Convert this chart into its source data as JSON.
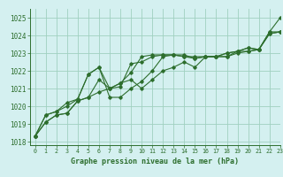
{
  "title": "Graphe pression niveau de la mer (hPa)",
  "background_color": "#d4f0f0",
  "grid_color": "#a0d0c0",
  "line_color": "#2d6e2d",
  "xlim": [
    -0.5,
    23
  ],
  "ylim": [
    1017.8,
    1025.5
  ],
  "yticks": [
    1018,
    1019,
    1020,
    1021,
    1022,
    1023,
    1024,
    1025
  ],
  "xticks": [
    0,
    1,
    2,
    3,
    4,
    5,
    6,
    7,
    8,
    9,
    10,
    11,
    12,
    13,
    14,
    15,
    16,
    17,
    18,
    19,
    20,
    21,
    22,
    23
  ],
  "series": [
    [
      1018.3,
      1019.1,
      1019.5,
      1019.6,
      1020.3,
      1020.5,
      1020.8,
      1021.0,
      1021.3,
      1021.9,
      1022.8,
      1022.9,
      1022.9,
      1022.9,
      1022.9,
      1022.7,
      1022.8,
      1022.8,
      1022.8,
      1023.1,
      1023.3,
      1023.2,
      1024.2,
      1025.0
    ],
    [
      1018.3,
      1019.5,
      1019.7,
      1020.0,
      1020.4,
      1021.8,
      1022.2,
      1021.0,
      1021.1,
      1022.4,
      1022.5,
      1022.8,
      1022.9,
      1022.9,
      1022.8,
      1022.8,
      1022.8,
      1022.8,
      1023.0,
      1023.1,
      1023.1,
      1023.2,
      1024.2,
      1024.2
    ],
    [
      1018.3,
      1019.5,
      1019.7,
      1020.2,
      1020.4,
      1021.8,
      1022.2,
      1020.5,
      1020.5,
      1021.0,
      1021.4,
      1022.0,
      1022.8,
      1022.9,
      1022.8,
      1022.7,
      1022.8,
      1022.8,
      1023.0,
      1023.1,
      1023.3,
      1023.2,
      1024.1,
      1024.2
    ],
    [
      1018.3,
      1019.1,
      1019.5,
      1019.6,
      1020.3,
      1020.5,
      1021.5,
      1021.0,
      1021.3,
      1021.5,
      1021.0,
      1021.5,
      1022.0,
      1022.2,
      1022.5,
      1022.2,
      1022.8,
      1022.8,
      1022.8,
      1023.0,
      1023.1,
      1023.2,
      1024.1,
      1024.2
    ]
  ]
}
